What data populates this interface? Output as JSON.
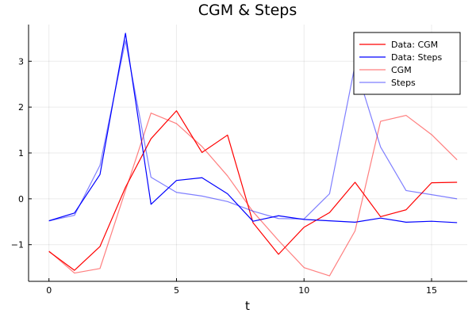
{
  "chart_data": {
    "type": "line",
    "title": "CGM & Steps",
    "xlabel": "t",
    "ylabel": "",
    "xlim": [
      -0.8,
      16.4
    ],
    "ylim": [
      -1.8,
      3.8
    ],
    "xticks": [
      0,
      5,
      10,
      15
    ],
    "yticks": [
      -1,
      0,
      1,
      2,
      3
    ],
    "grid": true,
    "legend_position": "top-right",
    "x": [
      0,
      1,
      2,
      3,
      4,
      5,
      6,
      7,
      8,
      9,
      10,
      11,
      12,
      13,
      14,
      15,
      16
    ],
    "series": [
      {
        "name": "Data: CGM",
        "color": "#ff0000",
        "opacity": 1.0,
        "values": [
          -1.15,
          -1.56,
          -1.04,
          0.25,
          1.31,
          1.92,
          1.01,
          1.39,
          -0.52,
          -1.21,
          -0.62,
          -0.3,
          0.36,
          -0.39,
          -0.24,
          0.35,
          0.36
        ]
      },
      {
        "name": "Data: Steps",
        "color": "#0000ff",
        "opacity": 1.0,
        "values": [
          -0.48,
          -0.31,
          0.53,
          3.61,
          -0.12,
          0.4,
          0.46,
          0.11,
          -0.49,
          -0.37,
          -0.45,
          -0.48,
          -0.51,
          -0.42,
          -0.51,
          -0.49,
          -0.52
        ]
      },
      {
        "name": "CGM",
        "color": "#ff0000",
        "opacity": 0.5,
        "values": [
          -1.14,
          -1.62,
          -1.52,
          0.18,
          1.87,
          1.64,
          1.14,
          0.5,
          -0.28,
          -0.91,
          -1.5,
          -1.68,
          -0.7,
          1.69,
          1.82,
          1.4,
          0.85
        ]
      },
      {
        "name": "Steps",
        "color": "#0000ff",
        "opacity": 0.5,
        "values": [
          -0.48,
          -0.36,
          0.73,
          3.45,
          0.47,
          0.14,
          0.06,
          -0.06,
          -0.27,
          -0.43,
          -0.44,
          0.11,
          2.92,
          1.13,
          0.18,
          0.09,
          0.0
        ]
      }
    ]
  }
}
